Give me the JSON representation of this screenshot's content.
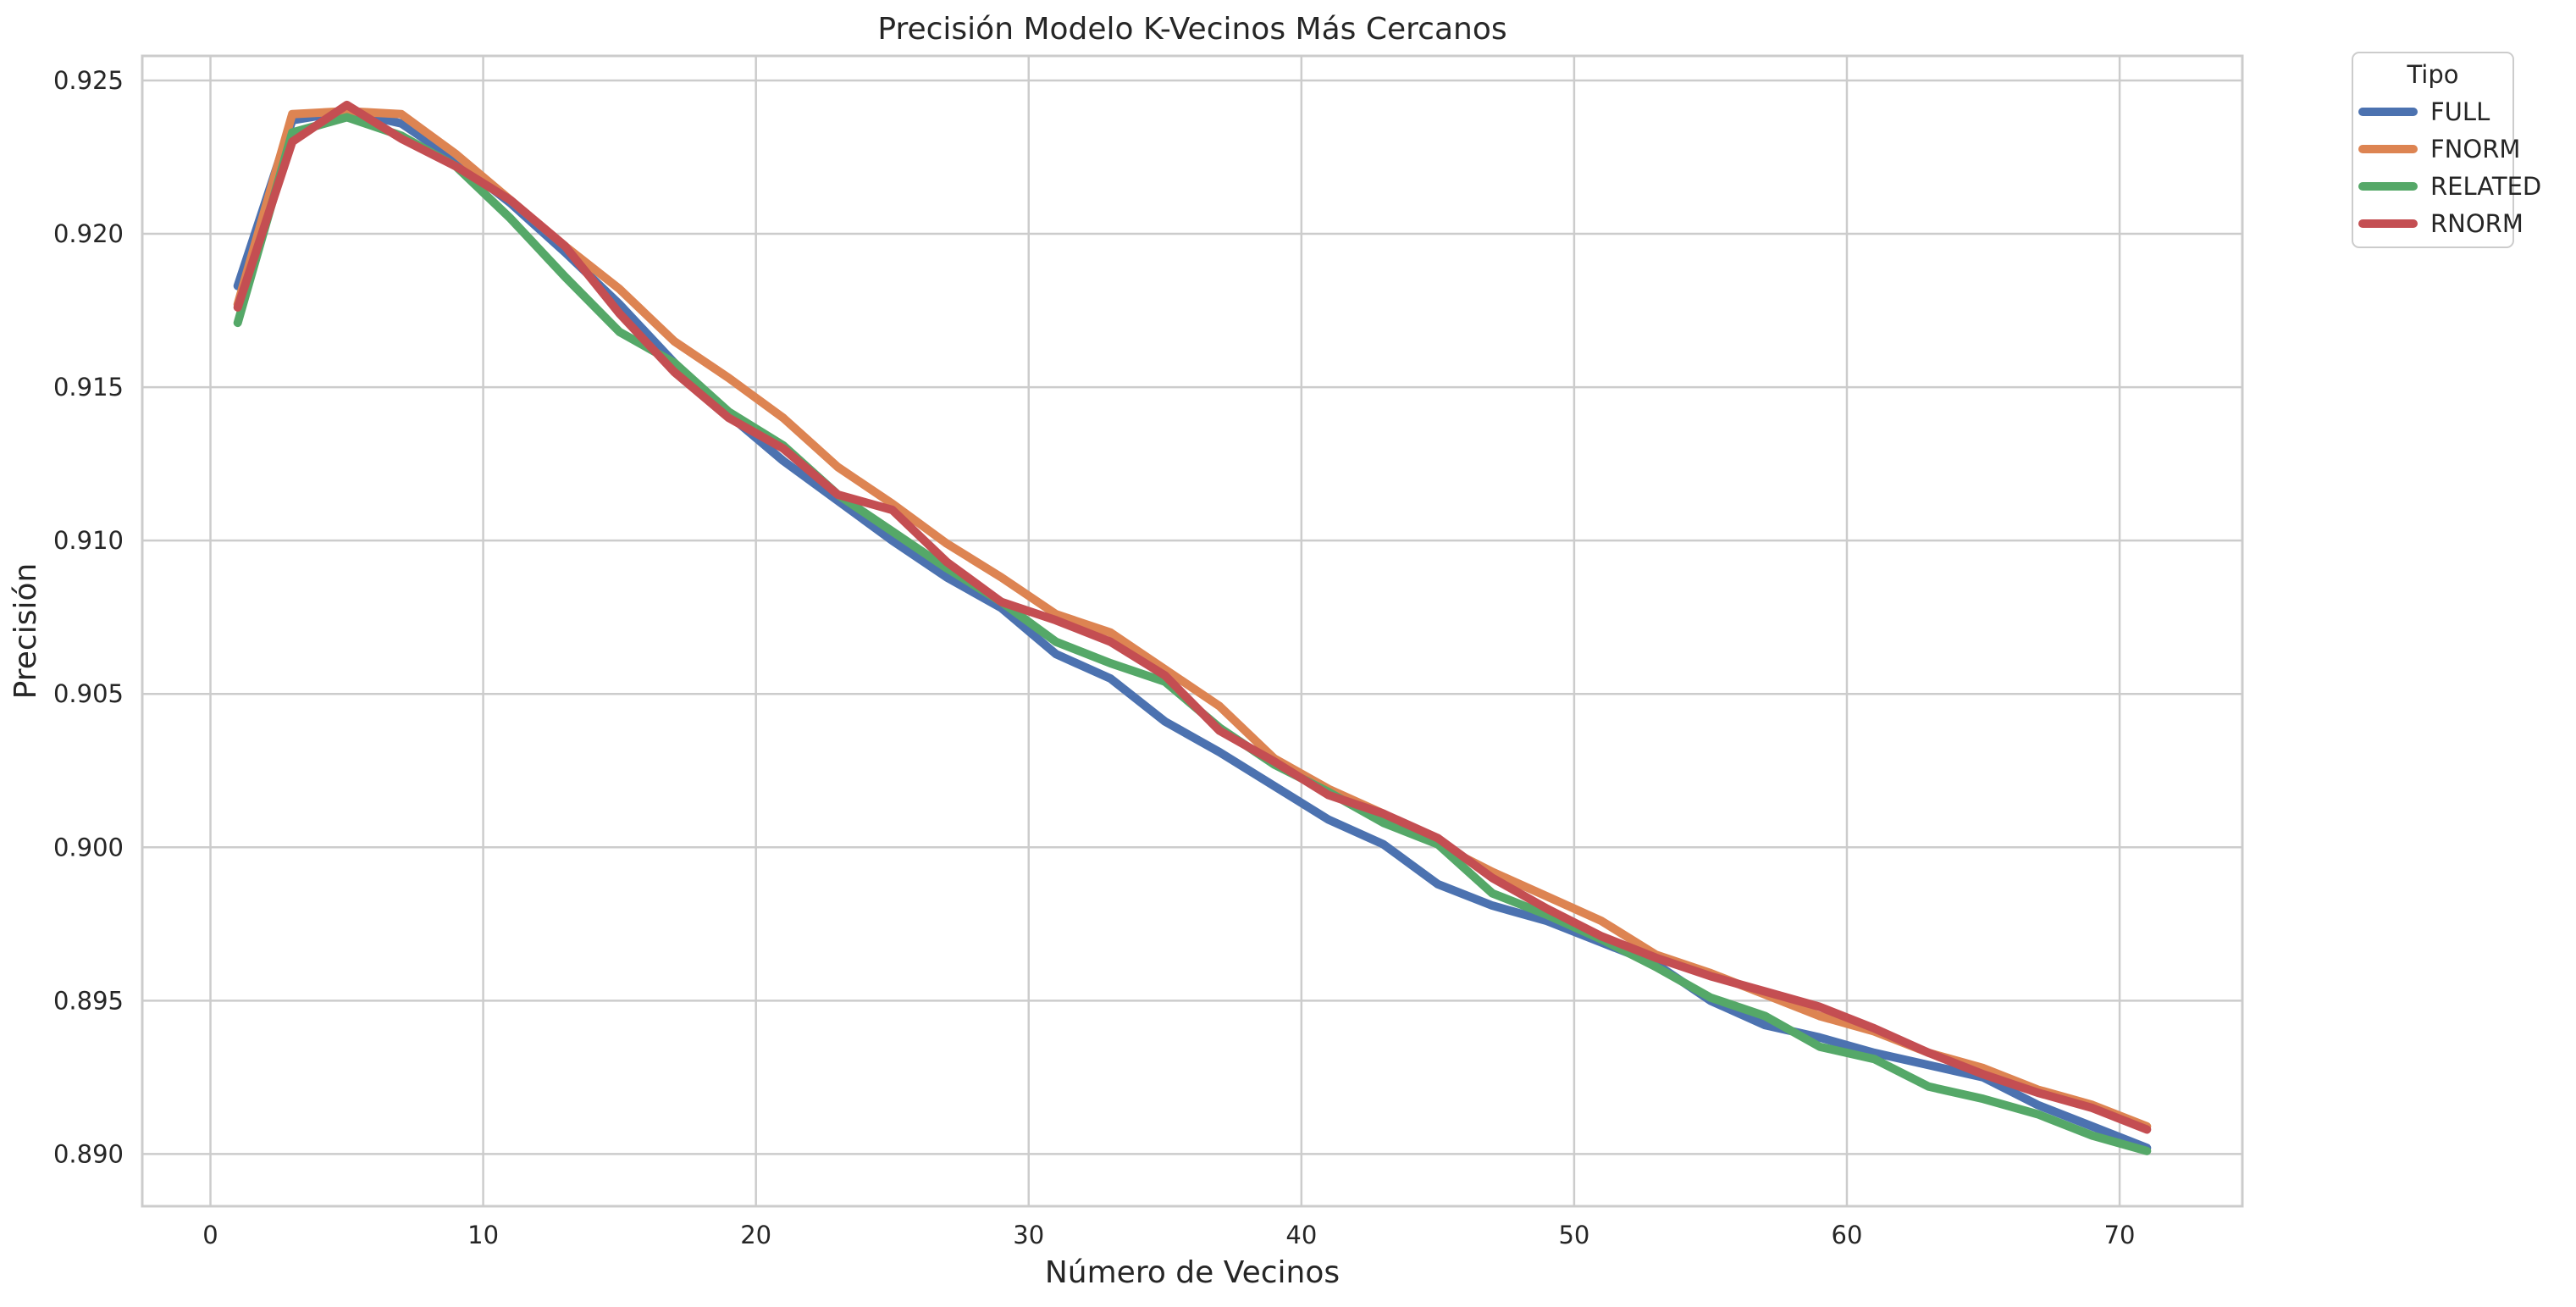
{
  "chart_data": {
    "type": "line",
    "title": "Precisión Modelo K-Vecinos Más Cercanos",
    "xlabel": "Número de Vecinos",
    "ylabel": "Precisión",
    "xlim": [
      -2.5,
      74.5
    ],
    "ylim": [
      0.8883,
      0.9258
    ],
    "xticks": [
      0,
      10,
      20,
      30,
      40,
      50,
      60,
      70
    ],
    "yticks": [
      0.89,
      0.895,
      0.9,
      0.905,
      0.91,
      0.915,
      0.92,
      0.925
    ],
    "ytick_labels": [
      "0.890",
      "0.895",
      "0.900",
      "0.905",
      "0.910",
      "0.915",
      "0.920",
      "0.925"
    ],
    "grid": true,
    "legend": {
      "title": "Tipo",
      "placement": "outside-top-right"
    },
    "x": [
      1,
      3,
      5,
      7,
      9,
      11,
      13,
      15,
      17,
      19,
      21,
      23,
      25,
      27,
      29,
      31,
      33,
      35,
      37,
      39,
      41,
      43,
      45,
      47,
      49,
      51,
      53,
      55,
      57,
      59,
      61,
      63,
      65,
      67,
      69,
      71
    ],
    "series": [
      {
        "name": "FULL",
        "color": "#4c72b0",
        "values": [
          0.9183,
          0.9237,
          0.924,
          0.9236,
          0.9224,
          0.921,
          0.9194,
          0.9177,
          0.9158,
          0.9141,
          0.9126,
          0.9113,
          0.91,
          0.9088,
          0.9078,
          0.9063,
          0.9055,
          0.9041,
          0.9031,
          0.902,
          0.9009,
          0.9001,
          0.8988,
          0.8981,
          0.8976,
          0.8969,
          0.8962,
          0.895,
          0.8942,
          0.8938,
          0.8933,
          0.8929,
          0.8925,
          0.8916,
          0.8909,
          0.8902
        ]
      },
      {
        "name": "FNORM",
        "color": "#dd8452",
        "values": [
          0.9177,
          0.9239,
          0.924,
          0.9239,
          0.9226,
          0.9211,
          0.9196,
          0.9182,
          0.9165,
          0.9153,
          0.914,
          0.9124,
          0.9112,
          0.9099,
          0.9088,
          0.9076,
          0.907,
          0.9058,
          0.9046,
          0.9029,
          0.9019,
          0.9011,
          0.9001,
          0.8992,
          0.8984,
          0.8976,
          0.8965,
          0.8959,
          0.8952,
          0.8945,
          0.894,
          0.8933,
          0.8928,
          0.8921,
          0.8916,
          0.8909
        ]
      },
      {
        "name": "RELATED",
        "color": "#55a868",
        "values": [
          0.9171,
          0.9233,
          0.9238,
          0.9232,
          0.9222,
          0.9205,
          0.9186,
          0.9168,
          0.9158,
          0.9142,
          0.9131,
          0.9115,
          0.9103,
          0.9091,
          0.908,
          0.9067,
          0.906,
          0.9054,
          0.9039,
          0.9027,
          0.9018,
          0.9008,
          0.9001,
          0.8985,
          0.8978,
          0.897,
          0.8961,
          0.8951,
          0.8945,
          0.8935,
          0.8931,
          0.8922,
          0.8918,
          0.8913,
          0.8906,
          0.8901
        ]
      },
      {
        "name": "RNORM",
        "color": "#c44e52",
        "values": [
          0.9176,
          0.923,
          0.9242,
          0.9231,
          0.9222,
          0.9211,
          0.9196,
          0.9174,
          0.9155,
          0.914,
          0.913,
          0.9115,
          0.911,
          0.9093,
          0.908,
          0.9074,
          0.9067,
          0.9056,
          0.9038,
          0.9028,
          0.9017,
          0.9011,
          0.9003,
          0.899,
          0.898,
          0.8971,
          0.8964,
          0.8958,
          0.8953,
          0.8948,
          0.8941,
          0.8933,
          0.8926,
          0.892,
          0.8915,
          0.8908
        ]
      }
    ]
  }
}
